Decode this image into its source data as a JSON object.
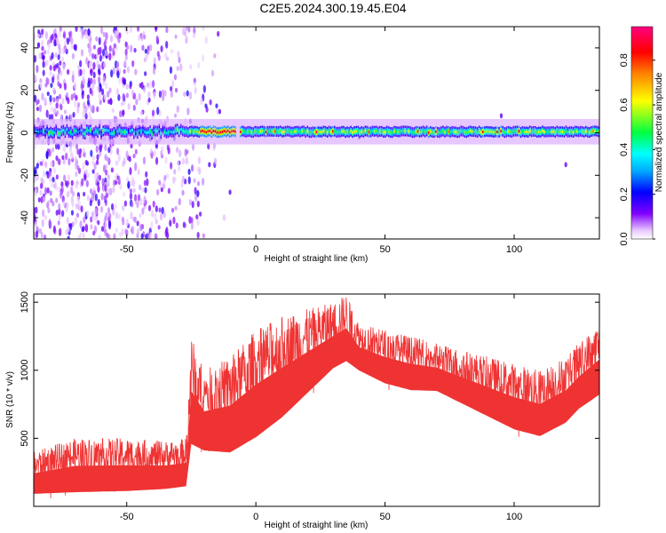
{
  "title": "C2E5.2024.300.19.45.E04",
  "chart_data": [
    {
      "type": "heatmap",
      "xlabel": "Height of straight line (km)",
      "ylabel": "Frequency (Hz)",
      "xlim": [
        -86,
        133
      ],
      "ylim": [
        -50,
        50
      ],
      "x_ticks": [
        -50,
        0,
        50,
        100
      ],
      "y_ticks": [
        -40,
        -20,
        0,
        20,
        40
      ],
      "colorbar": {
        "label": "Normalized spectral amplitude",
        "range": [
          0.0,
          0.95
        ],
        "ticks": [
          0.0,
          0.2,
          0.4,
          0.6,
          0.8
        ],
        "colors": [
          "#ffffff",
          "#8000ff",
          "#0000ff",
          "#00ffff",
          "#00ff00",
          "#ffff00",
          "#ff8000",
          "#ff0000",
          "#ff0080"
        ]
      },
      "ridge": {
        "frequency": 0.5,
        "x_start": -86,
        "x_end": 133,
        "peak_segment": [
          -22,
          -8
        ],
        "noise_region": [
          -86,
          -28
        ]
      },
      "grid": false
    },
    {
      "type": "line",
      "xlabel": "Height of straight line (km)",
      "ylabel": "SNR (10 * v/v)",
      "xlim": [
        -86,
        133
      ],
      "ylim": [
        0,
        1560
      ],
      "x_ticks": [
        -50,
        0,
        50,
        100
      ],
      "y_ticks": [
        500,
        1000,
        1500
      ],
      "color": "#ef3333",
      "envelope": {
        "x": [
          -86,
          -70,
          -50,
          -35,
          -27,
          -25,
          -20,
          -10,
          0,
          10,
          20,
          30,
          35,
          40,
          50,
          60,
          70,
          80,
          90,
          100,
          110,
          120,
          125,
          133
        ],
        "low": [
          50,
          50,
          60,
          80,
          100,
          350,
          330,
          300,
          400,
          550,
          750,
          950,
          1000,
          950,
          850,
          800,
          800,
          700,
          600,
          500,
          450,
          550,
          650,
          750
        ],
        "high": [
          400,
          500,
          500,
          480,
          500,
          1250,
          1000,
          1100,
          1300,
          1400,
          1450,
          1500,
          1560,
          1350,
          1300,
          1250,
          1200,
          1150,
          1100,
          1050,
          1000,
          1100,
          1200,
          1350
        ]
      },
      "grid": false
    }
  ]
}
